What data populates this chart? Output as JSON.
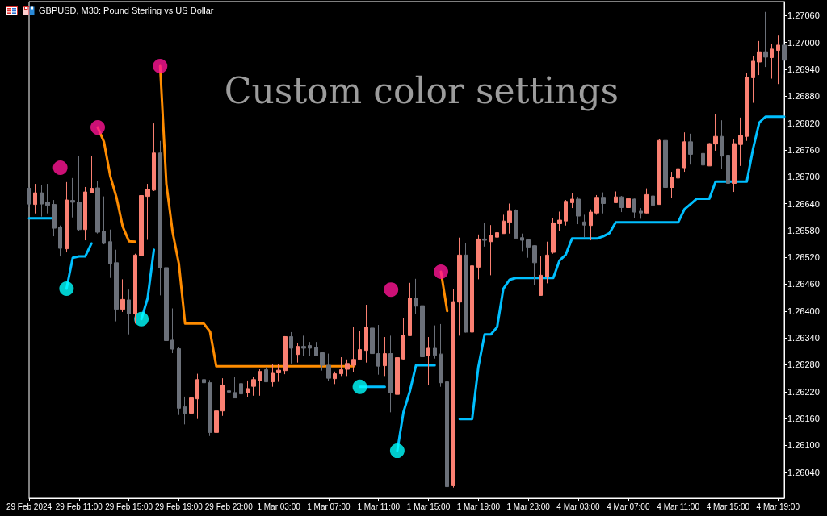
{
  "chart_data": {
    "type": "candlestick",
    "title": "GBPUSD, M30: Pound Sterling vs US Dollar",
    "annotations": [
      "Custom color settings"
    ],
    "categories": [
      "29 Feb 2024",
      null,
      null,
      null,
      null,
      null,
      null,
      null,
      "29 Feb 11:00",
      null,
      null,
      null,
      null,
      null,
      null,
      null,
      "29 Feb 15:00",
      null,
      null,
      null,
      null,
      null,
      null,
      null,
      "29 Feb 19:00",
      null,
      null,
      null,
      null,
      null,
      null,
      null,
      "29 Feb 23:00",
      null,
      null,
      null,
      null,
      null,
      null,
      null,
      "1 Mar 03:00",
      null,
      null,
      null,
      null,
      null,
      null,
      null,
      "1 Mar 07:00",
      null,
      null,
      null,
      null,
      null,
      null,
      null,
      "1 Mar 11:00",
      null,
      null,
      null,
      null,
      null,
      null,
      null,
      "1 Mar 15:00",
      null,
      null,
      null,
      null,
      null,
      null,
      null,
      "1 Mar 19:00",
      null,
      null,
      null,
      null,
      null,
      null,
      null,
      "1 Mar 23:00",
      null,
      null,
      null,
      null,
      null,
      null,
      null,
      "4 Mar 03:00",
      null,
      null,
      null,
      null,
      null,
      null,
      null,
      "4 Mar 07:00",
      null,
      null,
      null,
      null,
      null,
      null,
      null,
      "4 Mar 11:00",
      null,
      null,
      null,
      null,
      null,
      null,
      null,
      "4 Mar 15:00",
      null,
      null,
      null,
      null,
      null,
      null,
      null,
      "4 Mar 19:00",
      null
    ],
    "ohlc": [
      [
        1.26674,
        1.26677,
        1.26632,
        1.26639
      ],
      [
        1.26638,
        1.26684,
        1.26618,
        1.26664
      ],
      [
        1.26664,
        1.26681,
        1.26611,
        1.26639
      ],
      [
        1.26643,
        1.26684,
        1.26618,
        1.26636
      ],
      [
        1.26638,
        1.26648,
        1.26567,
        1.26585
      ],
      [
        1.26587,
        1.26591,
        1.26522,
        1.2654
      ],
      [
        1.26539,
        1.26688,
        1.26531,
        1.26648
      ],
      [
        1.26647,
        1.26697,
        1.26609,
        1.26643
      ],
      [
        1.26643,
        1.26746,
        1.26578,
        1.26582
      ],
      [
        1.26582,
        1.26677,
        1.26558,
        1.26666
      ],
      [
        1.26664,
        1.26746,
        1.26663,
        1.26674
      ],
      [
        1.26675,
        1.2669,
        1.26573,
        1.26576
      ],
      [
        1.26578,
        1.26656,
        1.26549,
        1.26551
      ],
      [
        1.26555,
        1.26582,
        1.26474,
        1.26506
      ],
      [
        1.26508,
        1.26537,
        1.26377,
        1.26404
      ],
      [
        1.26404,
        1.26471,
        1.26398,
        1.26426
      ],
      [
        1.26425,
        1.26448,
        1.26348,
        1.26394
      ],
      [
        1.26394,
        1.26528,
        1.26372,
        1.26525
      ],
      [
        1.26524,
        1.26681,
        1.2651,
        1.26658
      ],
      [
        1.26656,
        1.26684,
        1.26559,
        1.26672
      ],
      [
        1.2667,
        1.26819,
        1.26668,
        1.26753
      ],
      [
        1.26753,
        1.2678,
        1.26435,
        1.26496
      ],
      [
        1.26497,
        1.26515,
        1.26319,
        1.26334
      ],
      [
        1.26335,
        1.26406,
        1.26306,
        1.26315
      ],
      [
        1.26316,
        1.26319,
        1.26168,
        1.26183
      ],
      [
        1.26186,
        1.26209,
        1.26147,
        1.26172
      ],
      [
        1.26172,
        1.26229,
        1.26138,
        1.26206
      ],
      [
        1.26204,
        1.2626,
        1.26159,
        1.26247
      ],
      [
        1.26247,
        1.26278,
        1.26211,
        1.2624
      ],
      [
        1.2624,
        1.26246,
        1.26121,
        1.26129
      ],
      [
        1.26129,
        1.26183,
        1.26129,
        1.26177
      ],
      [
        1.26177,
        1.2625,
        1.26166,
        1.26235
      ],
      [
        1.26222,
        1.26227,
        1.26191,
        1.26219
      ],
      [
        1.26218,
        1.26252,
        1.26206,
        1.26206
      ],
      [
        1.26238,
        1.26238,
        1.26087,
        1.26215
      ],
      [
        1.26217,
        1.26245,
        1.26208,
        1.26227
      ],
      [
        1.26232,
        1.26253,
        1.26211,
        1.26247
      ],
      [
        1.26245,
        1.2627,
        1.26211,
        1.26265
      ],
      [
        1.26269,
        1.26275,
        1.26242,
        1.26242
      ],
      [
        1.26242,
        1.26281,
        1.26231,
        1.26261
      ],
      [
        1.26262,
        1.26282,
        1.26242,
        1.26268
      ],
      [
        1.26267,
        1.26344,
        1.26259,
        1.26343
      ],
      [
        1.26343,
        1.26353,
        1.26283,
        1.26317
      ],
      [
        1.26303,
        1.26329,
        1.26285,
        1.26321
      ],
      [
        1.26321,
        1.26345,
        1.263,
        1.26317
      ],
      [
        1.26323,
        1.26331,
        1.263,
        1.26317
      ],
      [
        1.26319,
        1.26331,
        1.263,
        1.263
      ],
      [
        1.26307,
        1.26307,
        1.26267,
        1.26279
      ],
      [
        1.26279,
        1.26305,
        1.26243,
        1.2625
      ],
      [
        1.26249,
        1.26265,
        1.26237,
        1.2626
      ],
      [
        1.2626,
        1.26297,
        1.26255,
        1.26269
      ],
      [
        1.2627,
        1.26292,
        1.26255,
        1.26283
      ],
      [
        1.26279,
        1.26364,
        1.26264,
        1.26292
      ],
      [
        1.26292,
        1.26355,
        1.26291,
        1.26314
      ],
      [
        1.26312,
        1.26414,
        1.26285,
        1.26364
      ],
      [
        1.26362,
        1.26388,
        1.26285,
        1.26305
      ],
      [
        1.26305,
        1.26369,
        1.26258,
        1.26277
      ],
      [
        1.26278,
        1.26342,
        1.26255,
        1.26305
      ],
      [
        1.26305,
        1.26345,
        1.26174,
        1.26217
      ],
      [
        1.26214,
        1.26342,
        1.26201,
        1.26296
      ],
      [
        1.26293,
        1.26385,
        1.26291,
        1.26346
      ],
      [
        1.26345,
        1.26463,
        1.26345,
        1.26429
      ],
      [
        1.26429,
        1.26472,
        1.26393,
        1.26411
      ],
      [
        1.26412,
        1.26416,
        1.26296,
        1.26298
      ],
      [
        1.263,
        1.26342,
        1.26234,
        1.26317
      ],
      [
        1.26317,
        1.26368,
        1.26294,
        1.26301
      ],
      [
        1.26304,
        1.26371,
        1.26231,
        1.2624
      ],
      [
        1.26242,
        1.26268,
        1.25994,
        1.26008
      ],
      [
        1.2601,
        1.2645,
        1.26006,
        1.26421
      ],
      [
        1.2642,
        1.26564,
        1.26345,
        1.26525
      ],
      [
        1.26525,
        1.26552,
        1.26352,
        1.26353
      ],
      [
        1.26353,
        1.26519,
        1.26352,
        1.26501
      ],
      [
        1.26498,
        1.26571,
        1.26471,
        1.26561
      ],
      [
        1.26561,
        1.26597,
        1.26544,
        1.26558
      ],
      [
        1.26555,
        1.26592,
        1.2648,
        1.26568
      ],
      [
        1.26565,
        1.26613,
        1.26528,
        1.26575
      ],
      [
        1.26573,
        1.26615,
        1.26573,
        1.26601
      ],
      [
        1.26598,
        1.2664,
        1.26573,
        1.26623
      ],
      [
        1.26625,
        1.26627,
        1.2656,
        1.26562
      ],
      [
        1.26564,
        1.26573,
        1.26534,
        1.26558
      ],
      [
        1.26559,
        1.26559,
        1.26519,
        1.26543
      ],
      [
        1.26546,
        1.26547,
        1.26459,
        1.26508
      ],
      [
        1.26435,
        1.26522,
        1.26435,
        1.2648
      ],
      [
        1.26477,
        1.26555,
        1.26462,
        1.26525
      ],
      [
        1.26531,
        1.26607,
        1.26528,
        1.26597
      ],
      [
        1.26595,
        1.26622,
        1.26579,
        1.26603
      ],
      [
        1.26601,
        1.26648,
        1.26591,
        1.26645
      ],
      [
        1.26642,
        1.26663,
        1.2663,
        1.2665
      ],
      [
        1.2665,
        1.26655,
        1.26594,
        1.26612
      ],
      [
        1.26599,
        1.26615,
        1.26564,
        1.26592
      ],
      [
        1.26591,
        1.26627,
        1.26558,
        1.26621
      ],
      [
        1.26619,
        1.26659,
        1.26615,
        1.26654
      ],
      [
        1.26654,
        1.26665,
        1.26618,
        1.2664
      ],
      null,
      [
        1.26642,
        1.26667,
        1.26642,
        1.26655
      ],
      [
        1.26655,
        1.26657,
        1.26621,
        1.26631
      ],
      [
        1.26631,
        1.26667,
        1.26615,
        1.26651
      ],
      [
        1.2665,
        1.26651,
        1.26607,
        1.26621
      ],
      [
        1.26623,
        1.2663,
        1.26606,
        1.26619
      ],
      [
        1.26619,
        1.26674,
        1.26618,
        1.2666
      ],
      [
        1.26657,
        1.26718,
        1.2663,
        1.26636
      ],
      [
        1.26638,
        1.26785,
        1.26638,
        1.26781
      ],
      [
        1.26781,
        1.26799,
        1.26667,
        1.26676
      ],
      [
        1.26676,
        1.26711,
        1.26652,
        1.26699
      ],
      [
        1.26697,
        1.26724,
        1.26697,
        1.26718
      ],
      [
        1.2672,
        1.26799,
        1.26711,
        1.26778
      ],
      [
        1.26778,
        1.26796,
        1.26727,
        1.2675
      ],
      null,
      [
        1.26752,
        1.26777,
        1.26711,
        1.26726
      ],
      [
        1.26724,
        1.26775,
        1.26724,
        1.26774
      ],
      [
        1.26773,
        1.26839,
        1.26758,
        1.2679
      ],
      [
        1.2679,
        1.26826,
        1.26717,
        1.26746
      ],
      [
        1.26748,
        1.26776,
        1.26657,
        1.26685
      ],
      [
        1.26685,
        1.26783,
        1.26666,
        1.26774
      ],
      [
        1.26772,
        1.26832,
        1.26724,
        1.26792
      ],
      [
        1.2679,
        1.26931,
        1.2678,
        1.26922
      ],
      [
        1.26921,
        1.2697,
        1.26865,
        1.26958
      ],
      [
        1.26956,
        1.27003,
        1.26927,
        1.26979
      ],
      [
        1.26979,
        1.27068,
        1.26945,
        1.26967
      ],
      [
        1.26966,
        1.26997,
        1.26919,
        1.26985
      ],
      [
        1.26982,
        1.27015,
        1.26907,
        1.26994
      ],
      [
        1.26994,
        1.27006,
        1.26928,
        1.2696
      ]
    ],
    "colors": [
      "#6b7079",
      "#fa8072",
      "#6b7079",
      "#6b7079",
      "#6b7079",
      "#6b7079",
      "#fa8072",
      "#6b7079",
      "#6b7079",
      "#fa8072",
      "#fa8072",
      "#6b7079",
      "#6b7079",
      "#6b7079",
      "#6b7079",
      "#fa8072",
      "#6b7079",
      "#fa8072",
      "#fa8072",
      "#fa8072",
      "#fa8072",
      "#6b7079",
      "#6b7079",
      "#6b7079",
      "#6b7079",
      "#6b7079",
      "#fa8072",
      "#fa8072",
      "#6b7079",
      "#6b7079",
      "#fa8072",
      "#fa8072",
      "#6b7079",
      "#6b7079",
      "#6b7079",
      "#fa8072",
      "#fa8072",
      "#fa8072",
      "#6b7079",
      "#fa8072",
      "#fa8072",
      "#fa8072",
      "#6b7079",
      "#fa8072",
      "#6b7079",
      "#6b7079",
      "#6b7079",
      "#6b7079",
      "#6b7079",
      "#fa8072",
      "#fa8072",
      "#fa8072",
      "#fa8072",
      "#fa8072",
      "#fa8072",
      "#6b7079",
      "#6b7079",
      "#fa8072",
      "#6b7079",
      "#fa8072",
      "#fa8072",
      "#fa8072",
      "#6b7079",
      "#6b7079",
      "#fa8072",
      "#6b7079",
      "#6b7079",
      "#6b7079",
      "#fa8072",
      "#fa8072",
      "#6b7079",
      "#fa8072",
      "#fa8072",
      "#6b7079",
      "#fa8072",
      "#fa8072",
      "#fa8072",
      "#fa8072",
      "#6b7079",
      "#6b7079",
      "#6b7079",
      "#6b7079",
      "#fa8072",
      "#fa8072",
      "#fa8072",
      "#fa8072",
      "#fa8072",
      "#fa8072",
      "#6b7079",
      "#6b7079",
      "#fa8072",
      "#fa8072",
      "#6b7079",
      null,
      "#fa8072",
      "#6b7079",
      "#fa8072",
      "#6b7079",
      "#6b7079",
      "#fa8072",
      "#6b7079",
      "#fa8072",
      "#6b7079",
      "#fa8072",
      "#fa8072",
      "#fa8072",
      "#6b7079",
      null,
      "#6b7079",
      "#fa8072",
      "#fa8072",
      "#6b7079",
      "#6b7079",
      "#fa8072",
      "#fa8072",
      "#fa8072",
      "#fa8072",
      "#fa8072",
      "#6b7079",
      "#fa8072",
      "#fa8072",
      "#6b7079"
    ],
    "ylim": [
      1.25982,
      1.27091
    ],
    "yticks": [
      {
        "value": 1.2604,
        "label": "1.26040"
      },
      {
        "value": 1.261,
        "label": "1.26100"
      },
      {
        "value": 1.2616,
        "label": "1.26160"
      },
      {
        "value": 1.2622,
        "label": "1.26220"
      },
      {
        "value": 1.2628,
        "label": "1.26280"
      },
      {
        "value": 1.2634,
        "label": "1.26340"
      },
      {
        "value": 1.264,
        "label": "1.26400"
      },
      {
        "value": 1.2646,
        "label": "1.26460"
      },
      {
        "value": 1.2652,
        "label": "1.26520"
      },
      {
        "value": 1.2658,
        "label": "1.26580"
      },
      {
        "value": 1.2664,
        "label": "1.26640"
      },
      {
        "value": 1.267,
        "label": "1.26700"
      },
      {
        "value": 1.2676,
        "label": "1.26760"
      },
      {
        "value": 1.2682,
        "label": "1.26820"
      },
      {
        "value": 1.2688,
        "label": "1.26880"
      },
      {
        "value": 1.2694,
        "label": "1.26940"
      },
      {
        "value": 1.27,
        "label": "1.27000"
      },
      {
        "value": 1.2706,
        "label": "1.27060"
      }
    ],
    "series": [
      {
        "type": "line",
        "color": "#ff8c00",
        "values": [
          null,
          null,
          null,
          null,
          null,
          null,
          null,
          null,
          null,
          null,
          null,
          1.2681,
          1.26778,
          1.26702,
          1.26654,
          1.26589,
          1.26556,
          1.26555,
          null,
          null,
          null,
          1.26947,
          1.26684,
          1.26576,
          1.26506,
          1.26372,
          1.26372,
          1.26372,
          1.26372,
          1.26354,
          1.26277,
          1.26277,
          1.26277,
          1.26277,
          1.26277,
          1.26277,
          1.26277,
          1.26277,
          1.26277,
          1.26277,
          1.26277,
          1.26277,
          1.26277,
          1.26277,
          1.26277,
          1.26277,
          1.26277,
          1.26277,
          1.26277,
          1.26277,
          1.26277,
          1.26277,
          1.26277,
          null,
          null,
          null,
          null,
          null,
          null,
          null,
          null,
          null,
          null,
          null,
          null,
          null,
          1.26488,
          1.264,
          null,
          null,
          null,
          null,
          null,
          null,
          null,
          null,
          null,
          null,
          null,
          null,
          null,
          null,
          null,
          null,
          null,
          null,
          null,
          null,
          null,
          null,
          null,
          null,
          null,
          null,
          null,
          null,
          null,
          null,
          null,
          null,
          null,
          null,
          null,
          null,
          null,
          null,
          null,
          null,
          null,
          null,
          null,
          null,
          null,
          null,
          null,
          null,
          null,
          null,
          null,
          null,
          null,
          null
        ]
      },
      {
        "type": "line",
        "color": "#00bfff",
        "values": [
          1.26607,
          1.26607,
          1.26607,
          1.26607,
          1.26607,
          null,
          1.2645,
          1.26519,
          1.26522,
          1.26522,
          1.26551,
          null,
          null,
          null,
          null,
          null,
          null,
          null,
          1.26382,
          1.26429,
          1.26537,
          null,
          null,
          null,
          null,
          null,
          null,
          null,
          null,
          null,
          null,
          null,
          null,
          null,
          null,
          null,
          null,
          null,
          null,
          null,
          null,
          null,
          null,
          null,
          null,
          null,
          null,
          null,
          null,
          null,
          null,
          null,
          null,
          1.26231,
          1.26231,
          1.26231,
          1.26231,
          1.26231,
          null,
          1.26088,
          1.26175,
          1.2622,
          1.26279,
          1.26279,
          1.26279,
          1.26279,
          null,
          null,
          null,
          1.26159,
          1.26159,
          1.26159,
          1.26276,
          1.26348,
          1.26348,
          1.26364,
          1.2645,
          1.2647,
          1.26474,
          1.26474,
          1.26474,
          1.26474,
          1.26474,
          1.26474,
          1.26474,
          1.26513,
          1.26526,
          1.26562,
          1.26562,
          1.26562,
          1.26562,
          1.26562,
          1.26567,
          1.26574,
          1.26598,
          1.26598,
          1.26598,
          1.26598,
          1.26598,
          1.26598,
          1.26598,
          1.26598,
          1.26598,
          1.26598,
          1.26598,
          1.26627,
          1.26639,
          1.26651,
          1.26651,
          1.26651,
          1.26689,
          1.26689,
          1.26689,
          1.26689,
          1.26689,
          1.26689,
          1.26762,
          1.26821,
          1.26834,
          1.26834,
          1.26834,
          1.26834
        ]
      },
      {
        "type": "scatter",
        "color": "#ff1493",
        "marker": "circle",
        "values": [
          null,
          null,
          null,
          null,
          null,
          1.2672,
          null,
          null,
          null,
          null,
          null,
          1.2681,
          null,
          null,
          null,
          null,
          null,
          null,
          null,
          null,
          null,
          1.26947,
          null,
          null,
          null,
          null,
          null,
          null,
          null,
          null,
          null,
          null,
          null,
          null,
          null,
          null,
          null,
          null,
          null,
          null,
          null,
          null,
          null,
          null,
          null,
          null,
          null,
          null,
          null,
          null,
          null,
          null,
          null,
          null,
          null,
          null,
          null,
          null,
          1.26448,
          null,
          null,
          null,
          null,
          null,
          null,
          null,
          1.26488,
          null,
          null,
          null,
          null,
          null,
          null,
          null,
          null,
          null,
          null,
          null,
          null,
          null,
          null,
          null,
          null,
          null,
          null,
          null,
          null,
          null,
          null,
          null,
          null,
          null,
          null,
          null,
          null,
          null,
          null,
          null,
          null,
          null,
          null,
          null,
          null,
          null,
          null,
          null,
          null,
          null,
          null,
          null,
          null,
          null,
          null,
          null,
          null,
          null,
          null,
          null,
          null,
          null,
          null,
          null
        ]
      },
      {
        "type": "scatter",
        "color": "#00ffff",
        "marker": "circle",
        "values": [
          null,
          null,
          null,
          null,
          null,
          null,
          1.2645,
          null,
          null,
          null,
          null,
          null,
          null,
          null,
          null,
          null,
          null,
          null,
          1.26382,
          null,
          null,
          null,
          null,
          null,
          null,
          null,
          null,
          null,
          null,
          null,
          null,
          null,
          null,
          null,
          null,
          null,
          null,
          null,
          null,
          null,
          null,
          null,
          null,
          null,
          null,
          null,
          null,
          null,
          null,
          null,
          null,
          null,
          null,
          1.26231,
          null,
          null,
          null,
          null,
          null,
          1.26088,
          null,
          null,
          null,
          null,
          null,
          null,
          null,
          null,
          null,
          null,
          null,
          null,
          null,
          null,
          null,
          null,
          null,
          null,
          null,
          null,
          null,
          null,
          null,
          null,
          null,
          null,
          null,
          null,
          null,
          null,
          null,
          null,
          null,
          null,
          null,
          null,
          null,
          null,
          null,
          null,
          null,
          null,
          null,
          null,
          null,
          null,
          null,
          null,
          null,
          null,
          null,
          null,
          null,
          null,
          null,
          null,
          null,
          null,
          null,
          null,
          null,
          null
        ]
      }
    ]
  }
}
